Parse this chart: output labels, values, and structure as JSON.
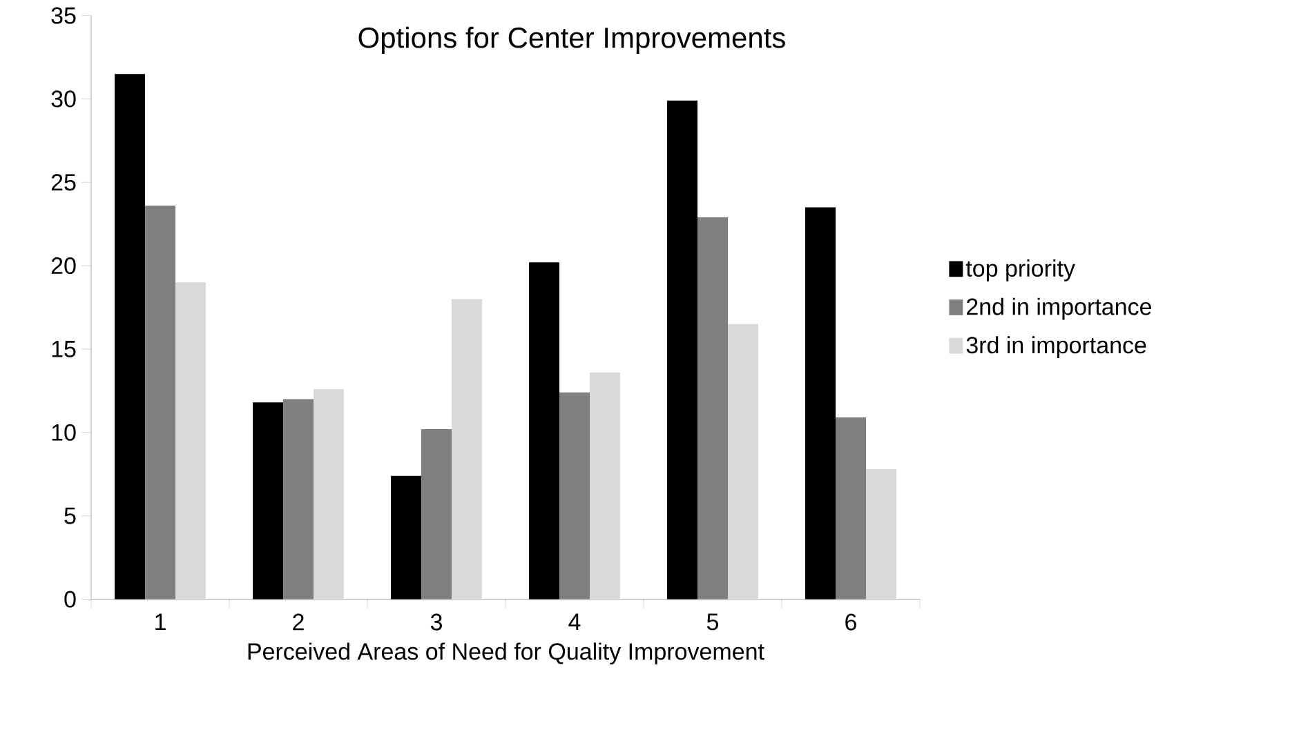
{
  "chart_data": {
    "type": "bar",
    "title": "Options for Center Improvements",
    "xlabel": "Perceived Areas of Need for Quality Improvement",
    "categories": [
      "1",
      "2",
      "3",
      "4",
      "5",
      "6"
    ],
    "series": [
      {
        "name": "top priority",
        "color": "#000000",
        "values": [
          31.5,
          11.8,
          7.4,
          20.2,
          29.9,
          23.5
        ]
      },
      {
        "name": "2nd in importance",
        "color": "#808080",
        "values": [
          23.6,
          12.0,
          10.2,
          12.4,
          22.9,
          10.9
        ]
      },
      {
        "name": "3rd  in importance",
        "color": "#d9d9d9",
        "values": [
          19.0,
          12.6,
          18.0,
          13.6,
          16.5,
          7.8
        ]
      }
    ],
    "ylim": [
      0,
      35
    ],
    "yticks": [
      0,
      5,
      10,
      15,
      20,
      25,
      30,
      35
    ],
    "grid": false,
    "legend": "right"
  }
}
